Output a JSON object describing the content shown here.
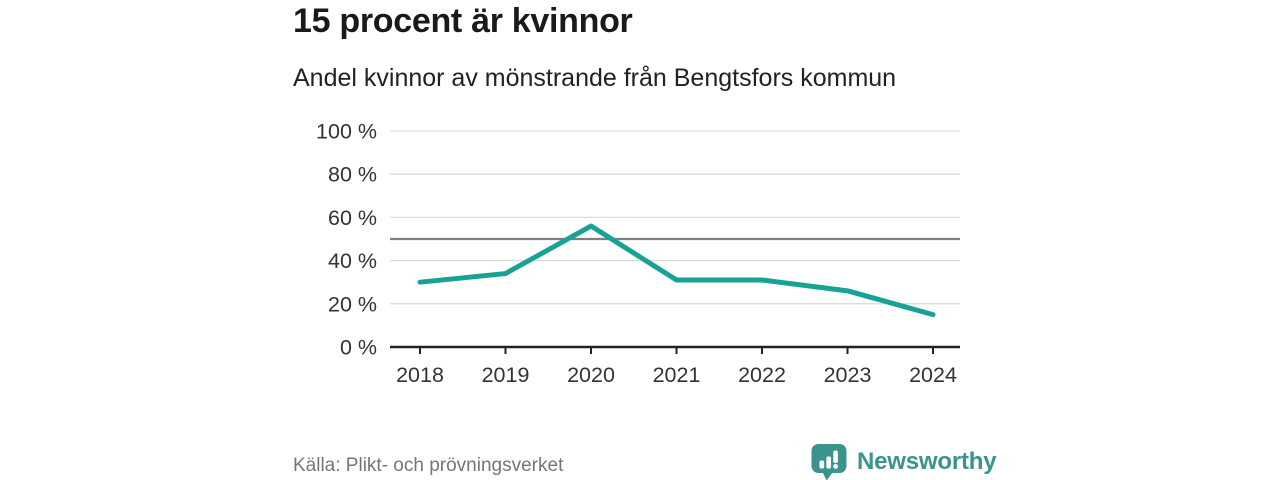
{
  "header": {
    "title": "15 procent är kvinnor",
    "subtitle": "Andel kvinnor av mönstrande från Bengtsfors kommun"
  },
  "chart_data": {
    "type": "line",
    "title": "15 procent är kvinnor",
    "subtitle": "Andel kvinnor av mönstrande från Bengtsfors kommun",
    "x": [
      "2018",
      "2019",
      "2020",
      "2021",
      "2022",
      "2023",
      "2024"
    ],
    "series": [
      {
        "name": "Andel kvinnor av mönstrande",
        "values": [
          30,
          34,
          56,
          31,
          31,
          26,
          15
        ]
      }
    ],
    "xlabel": "",
    "ylabel": "",
    "ylim": [
      0,
      100
    ],
    "ytick_step": 20,
    "ytick_suffix": " %",
    "reference_line_y": 50,
    "grid": true,
    "legend": "none",
    "colors": {
      "line": "#17a295",
      "gridline": "#dcdcdc",
      "reference_line": "#7f7f7f",
      "axis": "#222222",
      "tick_label": "#333333"
    }
  },
  "footer": {
    "source": "Källa: Plikt- och prövningsverket",
    "brand_name": "Newsworthy"
  },
  "colors": {
    "accent": "#17a295",
    "brand_teal": "#3a948d",
    "title_text": "#1a1a1a",
    "muted_text": "#767676",
    "background": "#ffffff"
  }
}
